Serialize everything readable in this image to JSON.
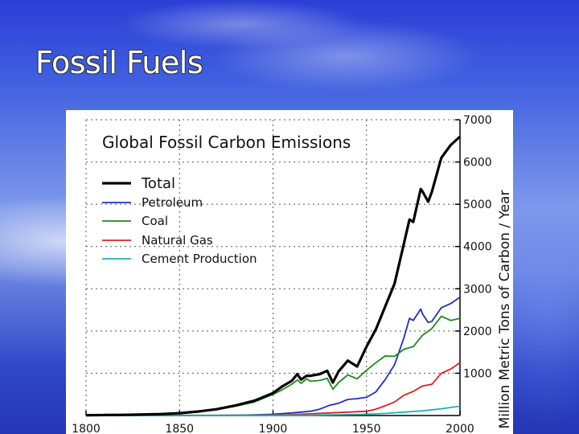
{
  "slide": {
    "title": "Fossil Fuels"
  },
  "chart_data": {
    "type": "line",
    "title": "Global Fossil Carbon Emissions",
    "xlabel": "",
    "ylabel": "Million Metric Tons of Carbon / Year",
    "xlim": [
      1800,
      2000
    ],
    "ylim": [
      0,
      7000
    ],
    "x_ticks": [
      "1800",
      "1850",
      "1900",
      "1950",
      "2000"
    ],
    "y_ticks": [
      "1000",
      "2000",
      "3000",
      "4000",
      "5000",
      "6000",
      "7000"
    ],
    "grid": "horizontal dotted",
    "legend_position": "top-left",
    "y_axis_side": "right",
    "series": [
      {
        "name": "Total",
        "color": "#000000",
        "x": [
          1800,
          1810,
          1820,
          1830,
          1840,
          1850,
          1860,
          1870,
          1880,
          1890,
          1900,
          1905,
          1910,
          1913,
          1915,
          1918,
          1920,
          1925,
          1929,
          1932,
          1935,
          1940,
          1945,
          1950,
          1955,
          1960,
          1965,
          1970,
          1973,
          1975,
          1979,
          1980,
          1983,
          1985,
          1990,
          1995,
          2000
        ],
        "y": [
          8,
          12,
          15,
          25,
          35,
          55,
          95,
          150,
          240,
          350,
          530,
          690,
          820,
          980,
          850,
          940,
          940,
          980,
          1060,
          780,
          1040,
          1300,
          1160,
          1630,
          2040,
          2580,
          3120,
          4070,
          4640,
          4580,
          5360,
          5300,
          5060,
          5300,
          6100,
          6400,
          6600
        ]
      },
      {
        "name": "Petroleum",
        "color": "#1f2fc0",
        "x": [
          1800,
          1870,
          1880,
          1890,
          1900,
          1910,
          1920,
          1925,
          1930,
          1935,
          1940,
          1945,
          1950,
          1955,
          1960,
          1965,
          1970,
          1973,
          1975,
          1979,
          1980,
          1983,
          1985,
          1990,
          1995,
          2000
        ],
        "y": [
          0,
          2,
          5,
          15,
          30,
          60,
          100,
          150,
          240,
          290,
          380,
          400,
          430,
          560,
          850,
          1200,
          1840,
          2300,
          2250,
          2520,
          2400,
          2200,
          2230,
          2550,
          2650,
          2800
        ]
      },
      {
        "name": "Coal",
        "color": "#1e8a1e",
        "x": [
          1800,
          1850,
          1860,
          1870,
          1880,
          1890,
          1900,
          1905,
          1910,
          1913,
          1915,
          1918,
          1920,
          1925,
          1929,
          1932,
          1935,
          1940,
          1945,
          1950,
          1955,
          1960,
          1965,
          1970,
          1975,
          1980,
          1985,
          1990,
          1995,
          2000
        ],
        "y": [
          8,
          50,
          90,
          140,
          220,
          320,
          500,
          610,
          740,
          840,
          760,
          870,
          810,
          830,
          880,
          620,
          780,
          960,
          870,
          1070,
          1250,
          1410,
          1400,
          1570,
          1630,
          1900,
          2060,
          2350,
          2250,
          2300
        ]
      },
      {
        "name": "Natural Gas",
        "color": "#dd2020",
        "x": [
          1800,
          1890,
          1900,
          1910,
          1920,
          1930,
          1940,
          1950,
          1955,
          1960,
          1965,
          1970,
          1975,
          1980,
          1985,
          1990,
          1995,
          2000
        ],
        "y": [
          0,
          5,
          10,
          20,
          40,
          60,
          80,
          100,
          150,
          230,
          320,
          480,
          570,
          700,
          740,
          1000,
          1100,
          1250
        ]
      },
      {
        "name": "Cement Production",
        "color": "#20b0b0",
        "x": [
          1800,
          1920,
          1930,
          1940,
          1950,
          1960,
          1970,
          1980,
          1990,
          2000
        ],
        "y": [
          0,
          8,
          15,
          20,
          30,
          50,
          80,
          110,
          160,
          220
        ]
      }
    ]
  }
}
